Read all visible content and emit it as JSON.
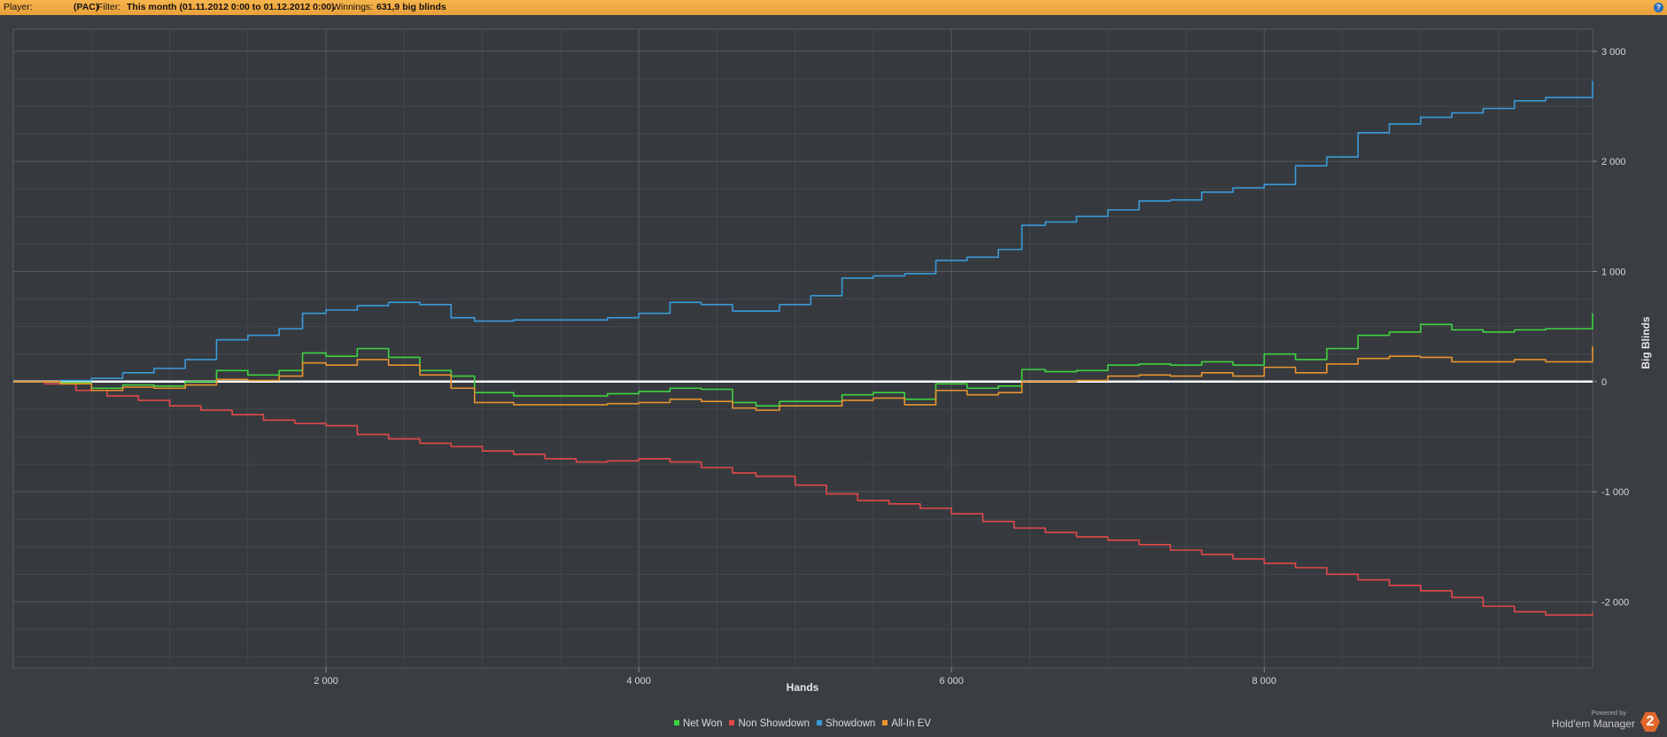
{
  "header": {
    "player_label": "Player:",
    "pac_label": "(PAC)",
    "filter_label": "Filter:",
    "filter_value": "This month (01.11.2012 0:00 to 01.12.2012 0:00)",
    "winnings_label": "Winnings:",
    "winnings_value": "631,9 big blinds",
    "help_glyph": "?"
  },
  "brand": {
    "powered_by": "Powered by",
    "name": "Hold'em Manager",
    "logo_glyph": "2"
  },
  "chart_data": {
    "type": "line",
    "title": "",
    "xlabel": "Hands",
    "ylabel": "Big Blinds",
    "xlim": [
      0,
      10100
    ],
    "ylim": [
      -2600,
      3200
    ],
    "x_ticks": [
      2000,
      4000,
      6000,
      8000
    ],
    "x_tick_labels": [
      "2 000",
      "4 000",
      "6 000",
      "8 000"
    ],
    "y_ticks": [
      3000,
      2000,
      1000,
      0,
      -1000,
      -2000
    ],
    "y_tick_labels": [
      "3 000",
      "2 000",
      "1 000",
      "0",
      "-1 000",
      "-2 000"
    ],
    "grid": true,
    "legend_position": "bottom-center",
    "series": [
      {
        "name": "Net Won",
        "color": "#3fd23f",
        "x": [
          0,
          300,
          500,
          700,
          900,
          1100,
          1300,
          1500,
          1700,
          1850,
          2000,
          2200,
          2400,
          2600,
          2800,
          2950,
          3200,
          3500,
          3800,
          4000,
          4200,
          4400,
          4600,
          4750,
          4900,
          5100,
          5300,
          5500,
          5700,
          5900,
          6100,
          6300,
          6450,
          6600,
          6800,
          7000,
          7200,
          7400,
          7600,
          7800,
          8000,
          8200,
          8400,
          8600,
          8800,
          9000,
          9200,
          9400,
          9600,
          9800,
          10100
        ],
        "y": [
          0,
          -10,
          -60,
          -30,
          -40,
          0,
          100,
          60,
          100,
          260,
          230,
          300,
          220,
          100,
          50,
          -100,
          -130,
          -130,
          -110,
          -90,
          -60,
          -70,
          -190,
          -220,
          -180,
          -180,
          -120,
          -100,
          -160,
          -20,
          -60,
          -40,
          110,
          90,
          100,
          150,
          160,
          150,
          180,
          150,
          250,
          200,
          300,
          420,
          450,
          520,
          470,
          450,
          470,
          480,
          620
        ]
      },
      {
        "name": "Non Showdown",
        "color": "#e34848",
        "x": [
          0,
          200,
          400,
          600,
          800,
          1000,
          1200,
          1400,
          1600,
          1800,
          2000,
          2200,
          2400,
          2600,
          2800,
          3000,
          3200,
          3400,
          3600,
          3800,
          4000,
          4200,
          4400,
          4600,
          4750,
          5000,
          5200,
          5400,
          5600,
          5800,
          6000,
          6200,
          6400,
          6600,
          6800,
          7000,
          7200,
          7400,
          7600,
          7800,
          8000,
          8200,
          8400,
          8600,
          8800,
          9000,
          9200,
          9400,
          9600,
          9800,
          10100
        ],
        "y": [
          0,
          -20,
          -80,
          -130,
          -170,
          -220,
          -260,
          -300,
          -350,
          -380,
          -400,
          -480,
          -520,
          -560,
          -590,
          -630,
          -660,
          -700,
          -730,
          -720,
          -700,
          -730,
          -780,
          -830,
          -860,
          -940,
          -1020,
          -1080,
          -1110,
          -1150,
          -1200,
          -1270,
          -1330,
          -1370,
          -1410,
          -1440,
          -1480,
          -1530,
          -1570,
          -1610,
          -1650,
          -1690,
          -1750,
          -1800,
          -1850,
          -1900,
          -1960,
          -2040,
          -2090,
          -2120,
          -2100
        ]
      },
      {
        "name": "Showdown",
        "color": "#3a9ad9",
        "x": [
          0,
          300,
          500,
          700,
          900,
          1100,
          1300,
          1500,
          1700,
          1850,
          2000,
          2200,
          2400,
          2600,
          2800,
          2950,
          3200,
          3500,
          3800,
          4000,
          4200,
          4400,
          4600,
          4750,
          4900,
          5100,
          5300,
          5500,
          5700,
          5900,
          6100,
          6300,
          6450,
          6600,
          6800,
          7000,
          7200,
          7400,
          7600,
          7800,
          8000,
          8200,
          8400,
          8600,
          8800,
          9000,
          9200,
          9400,
          9600,
          9800,
          10100
        ],
        "y": [
          0,
          10,
          30,
          80,
          120,
          200,
          380,
          420,
          480,
          620,
          650,
          690,
          720,
          700,
          580,
          550,
          560,
          560,
          580,
          620,
          720,
          700,
          640,
          640,
          700,
          780,
          940,
          960,
          980,
          1100,
          1130,
          1200,
          1420,
          1450,
          1500,
          1560,
          1640,
          1650,
          1720,
          1760,
          1790,
          1960,
          2040,
          2260,
          2340,
          2400,
          2440,
          2480,
          2550,
          2580,
          2730
        ]
      },
      {
        "name": "All-In EV",
        "color": "#e8932e",
        "x": [
          0,
          300,
          500,
          700,
          900,
          1100,
          1300,
          1500,
          1700,
          1850,
          2000,
          2200,
          2400,
          2600,
          2800,
          2950,
          3200,
          3500,
          3800,
          4000,
          4200,
          4400,
          4600,
          4750,
          4900,
          5100,
          5300,
          5500,
          5700,
          5900,
          6100,
          6300,
          6450,
          6600,
          6800,
          7000,
          7200,
          7400,
          7600,
          7800,
          8000,
          8200,
          8400,
          8600,
          8800,
          9000,
          9200,
          9400,
          9600,
          9800,
          10100
        ],
        "y": [
          0,
          -20,
          -80,
          -50,
          -60,
          -30,
          20,
          10,
          50,
          170,
          150,
          200,
          150,
          60,
          -60,
          -190,
          -210,
          -210,
          -200,
          -190,
          -160,
          -180,
          -240,
          -260,
          -220,
          -220,
          -170,
          -150,
          -210,
          -80,
          -120,
          -100,
          0,
          0,
          10,
          50,
          60,
          50,
          80,
          50,
          130,
          80,
          160,
          210,
          230,
          220,
          180,
          180,
          200,
          180,
          320
        ]
      }
    ]
  }
}
